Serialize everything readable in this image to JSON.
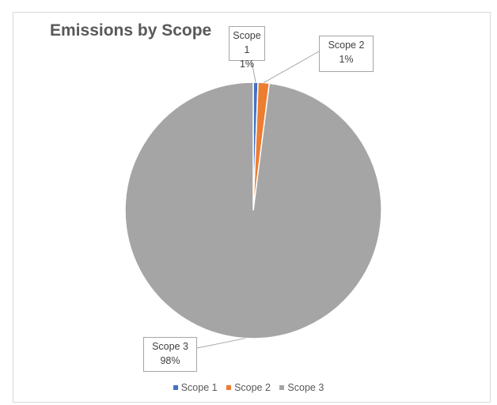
{
  "chart_data": {
    "type": "pie",
    "title": "Emissions by Scope",
    "slices": [
      {
        "label": "Scope 1",
        "value": 0.6,
        "display": "1%",
        "color": "#4472c4"
      },
      {
        "label": "Scope 2",
        "value": 1.4,
        "display": "1%",
        "color": "#ed7d31"
      },
      {
        "label": "Scope 3",
        "value": 98.0,
        "display": "98%",
        "color": "#a5a5a5"
      }
    ],
    "legend_position": "bottom"
  }
}
